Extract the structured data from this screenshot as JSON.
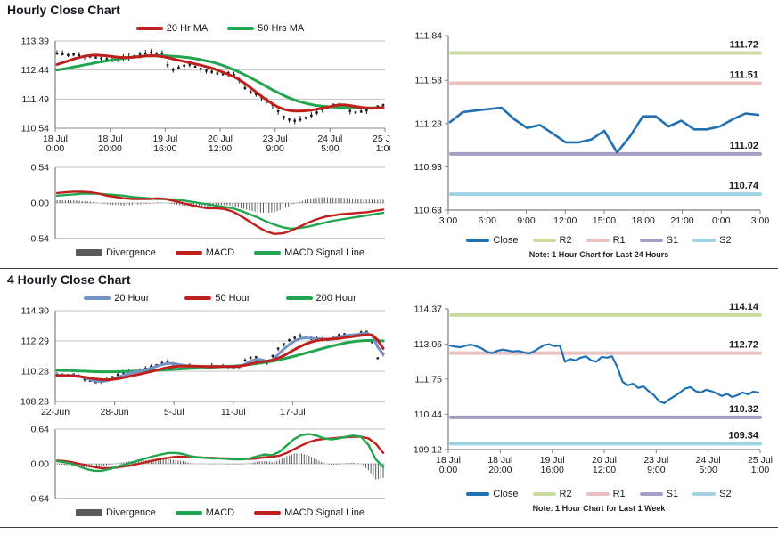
{
  "section1": {
    "title": "Hourly Close Chart"
  },
  "section2": {
    "title": "4 Hourly Close Chart"
  },
  "colors": {
    "red": "#c0201c",
    "green": "#21a64f",
    "blue_close": "#2070b4",
    "steel_blue": "#7093c8",
    "divergence_gray": "#595959",
    "r2": "#c9db9f",
    "r1": "#e9c0be",
    "s1": "#a89cc8",
    "s2": "#9fd3e2",
    "grid": "#c3c3c3",
    "axis": "#808080",
    "candle": "#1a1a1a"
  },
  "chart_data": "see charts",
  "charts": {
    "hourly_price": {
      "type": "line",
      "title": "Hourly Close Chart",
      "legend": [
        {
          "label": "20 Hr MA",
          "color": "red"
        },
        {
          "label": "50 Hrs MA",
          "color": "green"
        }
      ],
      "ylim": [
        110.54,
        113.39
      ],
      "yticks": [
        113.39,
        112.44,
        111.49,
        110.54
      ],
      "xticks": [
        [
          "18 Jul",
          "0:00"
        ],
        [
          "18 Jul",
          "20:00"
        ],
        [
          "19 Jul",
          "16:00"
        ],
        [
          "20 Jul",
          "12:00"
        ],
        [
          "23 Jul",
          "9:00"
        ],
        [
          "24 Jul",
          "5:00"
        ],
        [
          "25 Jul",
          "1:00"
        ]
      ],
      "close": [
        112.98,
        112.96,
        112.93,
        112.95,
        112.92,
        112.9,
        112.88,
        112.85,
        112.82,
        112.8,
        112.78,
        112.8,
        112.83,
        112.86,
        112.9,
        112.94,
        112.98,
        113.01,
        112.99,
        112.96,
        112.6,
        112.45,
        112.52,
        112.58,
        112.62,
        112.55,
        112.48,
        112.42,
        112.38,
        112.33,
        112.3,
        112.34,
        112.28,
        112.1,
        111.85,
        111.72,
        111.65,
        111.55,
        111.45,
        111.3,
        111.1,
        110.92,
        110.82,
        110.78,
        110.82,
        110.88,
        110.95,
        111.05,
        111.15,
        111.22,
        111.3,
        111.28,
        111.2,
        111.1,
        111.05,
        111.08,
        111.12,
        111.18,
        111.25,
        111.3
      ],
      "ma20": [
        112.62,
        112.68,
        112.74,
        112.8,
        112.85,
        112.89,
        112.92,
        112.93,
        112.92,
        112.9,
        112.88,
        112.86,
        112.85,
        112.85,
        112.86,
        112.88,
        112.9,
        112.91,
        112.9,
        112.88,
        112.85,
        112.8,
        112.76,
        112.72,
        112.68,
        112.64,
        112.6,
        112.55,
        112.5,
        112.44,
        112.37,
        112.3,
        112.22,
        112.12,
        112.0,
        111.86,
        111.72,
        111.58,
        111.45,
        111.33,
        111.23,
        111.16,
        111.12,
        111.1,
        111.1,
        111.11,
        111.13,
        111.16,
        111.19,
        111.23,
        111.27,
        111.3,
        111.3,
        111.28,
        111.25,
        111.22,
        111.2,
        111.19,
        111.2,
        111.22
      ],
      "ma50": [
        112.44,
        112.47,
        112.5,
        112.54,
        112.57,
        112.61,
        112.64,
        112.68,
        112.71,
        112.74,
        112.77,
        112.8,
        112.82,
        112.85,
        112.87,
        112.88,
        112.9,
        112.9,
        112.91,
        112.91,
        112.9,
        112.89,
        112.88,
        112.86,
        112.84,
        112.81,
        112.78,
        112.74,
        112.7,
        112.65,
        112.59,
        112.52,
        112.45,
        112.37,
        112.28,
        112.19,
        112.09,
        111.99,
        111.89,
        111.79,
        111.7,
        111.61,
        111.53,
        111.46,
        111.4,
        111.35,
        111.31,
        111.28,
        111.26,
        111.24,
        111.23,
        111.22,
        111.21,
        111.21,
        111.2,
        111.2,
        111.2,
        111.2,
        111.21,
        111.22
      ]
    },
    "hourly_macd": {
      "type": "line+bar",
      "legend": [
        {
          "label": "Divergence",
          "color": "divergence_gray"
        },
        {
          "label": "MACD",
          "color": "red"
        },
        {
          "label": "MACD Signal Line",
          "color": "green"
        }
      ],
      "ylim": [
        -0.54,
        0.54
      ],
      "yticks": [
        0.54,
        0.0,
        -0.54
      ],
      "macd": [
        0.15,
        0.16,
        0.17,
        0.17,
        0.16,
        0.14,
        0.11,
        0.09,
        0.07,
        0.06,
        0.06,
        0.06,
        0.07,
        0.06,
        0.03,
        0.0,
        -0.03,
        -0.06,
        -0.08,
        -0.08,
        -0.09,
        -0.13,
        -0.2,
        -0.28,
        -0.36,
        -0.43,
        -0.47,
        -0.46,
        -0.42,
        -0.36,
        -0.3,
        -0.25,
        -0.21,
        -0.19,
        -0.17,
        -0.16,
        -0.15,
        -0.14,
        -0.12,
        -0.1
      ],
      "signal": [
        0.11,
        0.12,
        0.13,
        0.14,
        0.14,
        0.14,
        0.13,
        0.12,
        0.11,
        0.09,
        0.08,
        0.07,
        0.06,
        0.06,
        0.05,
        0.04,
        0.02,
        0.0,
        -0.02,
        -0.04,
        -0.06,
        -0.08,
        -0.12,
        -0.17,
        -0.22,
        -0.28,
        -0.33,
        -0.37,
        -0.39,
        -0.38,
        -0.36,
        -0.33,
        -0.3,
        -0.27,
        -0.25,
        -0.23,
        -0.21,
        -0.19,
        -0.17,
        -0.15
      ],
      "divergence": [
        0.04,
        0.04,
        0.04,
        0.03,
        0.02,
        0.0,
        -0.02,
        -0.03,
        -0.04,
        -0.03,
        -0.02,
        -0.01,
        0.01,
        0.0,
        -0.02,
        -0.04,
        -0.05,
        -0.06,
        -0.06,
        -0.04,
        -0.03,
        -0.05,
        -0.08,
        -0.11,
        -0.14,
        -0.15,
        -0.14,
        -0.09,
        -0.03,
        0.02,
        0.06,
        0.08,
        0.09,
        0.08,
        0.08,
        0.07,
        0.06,
        0.05,
        0.05,
        0.05
      ]
    },
    "daily_pivot": {
      "type": "line",
      "legend": [
        {
          "label": "Close",
          "color": "blue_close"
        },
        {
          "label": "R2",
          "color": "r2"
        },
        {
          "label": "R1",
          "color": "r1"
        },
        {
          "label": "S1",
          "color": "s1"
        },
        {
          "label": "S2",
          "color": "s2"
        }
      ],
      "note": "Note: 1 Hour Chart for Last 24 Hours",
      "ylim": [
        110.63,
        111.84
      ],
      "yticks": [
        111.84,
        111.53,
        111.23,
        110.93,
        110.63
      ],
      "xticks": [
        "3:00",
        "6:00",
        "9:00",
        "12:00",
        "15:00",
        "18:00",
        "21:00",
        "0:00",
        "3:00"
      ],
      "levels": [
        {
          "name": "R2",
          "value": 111.72,
          "color": "r2"
        },
        {
          "name": "R1",
          "value": 111.51,
          "color": "r1"
        },
        {
          "name": "S1",
          "value": 111.02,
          "color": "s1"
        },
        {
          "name": "S2",
          "value": 110.74,
          "color": "s2"
        }
      ],
      "close": [
        111.24,
        111.31,
        111.32,
        111.33,
        111.34,
        111.26,
        111.2,
        111.22,
        111.16,
        111.1,
        111.1,
        111.12,
        111.18,
        111.03,
        111.14,
        111.28,
        111.28,
        111.21,
        111.25,
        111.19,
        111.19,
        111.21,
        111.26,
        111.3,
        111.29
      ]
    },
    "fourhour_price": {
      "type": "line",
      "title": "4 Hourly Close Chart",
      "legend": [
        {
          "label": "20 Hour",
          "color": "steel_blue"
        },
        {
          "label": "50 Hour",
          "color": "red"
        },
        {
          "label": "200 Hour",
          "color": "green"
        }
      ],
      "ylim": [
        108.28,
        114.3
      ],
      "yticks": [
        114.3,
        112.29,
        110.28,
        108.28
      ],
      "xticks": [
        "22-Jun",
        "28-Jun",
        "5-Jul",
        "11-Jul",
        "17-Jul"
      ],
      "close": [
        110.05,
        109.98,
        110.02,
        110.08,
        109.92,
        109.75,
        109.65,
        109.55,
        109.6,
        109.72,
        109.9,
        110.05,
        110.18,
        110.28,
        110.22,
        110.32,
        110.45,
        110.58,
        110.7,
        110.82,
        110.9,
        110.8,
        110.68,
        110.62,
        110.66,
        110.6,
        110.56,
        110.6,
        110.64,
        110.6,
        110.62,
        110.58,
        110.55,
        110.6,
        111.0,
        111.18,
        111.22,
        110.95,
        110.85,
        111.3,
        111.8,
        112.1,
        112.35,
        112.5,
        112.62,
        112.5,
        112.42,
        112.46,
        112.4,
        112.36,
        112.5,
        112.68,
        112.74,
        112.66,
        112.72,
        112.86,
        112.9,
        112.2,
        111.15,
        111.45
      ],
      "ma20": [
        110.02,
        110.0,
        110.0,
        110.0,
        109.95,
        109.85,
        109.73,
        109.63,
        109.6,
        109.65,
        109.75,
        109.88,
        110.02,
        110.14,
        110.22,
        110.28,
        110.38,
        110.5,
        110.62,
        110.73,
        110.8,
        110.8,
        110.74,
        110.67,
        110.64,
        110.62,
        110.59,
        110.59,
        110.6,
        110.61,
        110.6,
        110.59,
        110.58,
        110.6,
        110.75,
        110.95,
        111.08,
        111.05,
        110.95,
        111.05,
        111.4,
        111.75,
        112.05,
        112.3,
        112.45,
        112.5,
        112.47,
        112.44,
        112.42,
        112.4,
        112.44,
        112.54,
        112.64,
        112.68,
        112.7,
        112.76,
        112.82,
        112.65,
        111.9,
        111.42
      ],
      "ma50": [
        110.0,
        110.0,
        109.99,
        109.97,
        109.94,
        109.89,
        109.83,
        109.77,
        109.73,
        109.72,
        109.74,
        109.79,
        109.86,
        109.94,
        110.02,
        110.1,
        110.18,
        110.27,
        110.36,
        110.45,
        110.53,
        110.59,
        110.62,
        110.63,
        110.63,
        110.62,
        110.61,
        110.6,
        110.6,
        110.6,
        110.6,
        110.6,
        110.6,
        110.62,
        110.68,
        110.77,
        110.86,
        110.92,
        110.96,
        111.02,
        111.15,
        111.32,
        111.52,
        111.73,
        111.93,
        112.1,
        112.23,
        112.32,
        112.38,
        112.41,
        112.43,
        112.46,
        112.51,
        112.56,
        112.61,
        112.66,
        112.7,
        112.68,
        112.35,
        111.8
      ],
      "ma200": [
        110.35,
        110.34,
        110.33,
        110.32,
        110.3,
        110.29,
        110.27,
        110.26,
        110.25,
        110.25,
        110.25,
        110.26,
        110.27,
        110.28,
        110.29,
        110.3,
        110.31,
        110.33,
        110.35,
        110.37,
        110.39,
        110.41,
        110.43,
        110.45,
        110.47,
        110.49,
        110.51,
        110.53,
        110.55,
        110.57,
        110.59,
        110.61,
        110.63,
        110.66,
        110.7,
        110.74,
        110.79,
        110.84,
        110.9,
        110.96,
        111.03,
        111.11,
        111.2,
        111.29,
        111.39,
        111.49,
        111.59,
        111.69,
        111.79,
        111.89,
        111.98,
        112.07,
        112.15,
        112.22,
        112.27,
        112.3,
        112.32,
        112.32,
        112.31,
        112.3
      ]
    },
    "fourhour_macd": {
      "type": "line+bar",
      "legend": [
        {
          "label": "Divergence",
          "color": "divergence_gray"
        },
        {
          "label": "MACD",
          "color": "green"
        },
        {
          "label": "MACD Signal Line",
          "color": "red"
        }
      ],
      "ylim": [
        -0.64,
        0.64
      ],
      "yticks": [
        0.64,
        0.0,
        -0.64
      ],
      "macd": [
        0.05,
        0.03,
        0.0,
        -0.05,
        -0.1,
        -0.13,
        -0.13,
        -0.1,
        -0.06,
        -0.02,
        0.02,
        0.06,
        0.1,
        0.14,
        0.17,
        0.2,
        0.2,
        0.18,
        0.14,
        0.12,
        0.11,
        0.1,
        0.1,
        0.09,
        0.08,
        0.08,
        0.1,
        0.14,
        0.17,
        0.16,
        0.22,
        0.34,
        0.46,
        0.53,
        0.55,
        0.52,
        0.47,
        0.45,
        0.47,
        0.5,
        0.52,
        0.5,
        0.35,
        0.08,
        -0.06
      ],
      "signal": [
        0.06,
        0.05,
        0.03,
        0.0,
        -0.03,
        -0.06,
        -0.08,
        -0.08,
        -0.07,
        -0.05,
        -0.03,
        0.0,
        0.03,
        0.06,
        0.09,
        0.11,
        0.13,
        0.13,
        0.13,
        0.12,
        0.11,
        0.11,
        0.1,
        0.1,
        0.09,
        0.09,
        0.09,
        0.1,
        0.12,
        0.13,
        0.15,
        0.2,
        0.27,
        0.34,
        0.4,
        0.44,
        0.46,
        0.47,
        0.48,
        0.49,
        0.5,
        0.5,
        0.47,
        0.37,
        0.2
      ],
      "divergence": [
        -0.01,
        -0.02,
        -0.03,
        -0.05,
        -0.07,
        -0.07,
        -0.05,
        -0.02,
        0.01,
        0.03,
        0.05,
        0.06,
        0.07,
        0.08,
        0.08,
        0.09,
        0.07,
        0.05,
        0.01,
        0.0,
        0.0,
        -0.01,
        0.0,
        -0.01,
        -0.01,
        -0.01,
        0.01,
        0.04,
        0.05,
        0.03,
        0.07,
        0.14,
        0.19,
        0.19,
        0.15,
        0.08,
        0.01,
        -0.02,
        -0.01,
        0.01,
        0.02,
        0.0,
        -0.12,
        -0.29,
        -0.26
      ]
    },
    "weekly_pivot": {
      "type": "line",
      "legend": [
        {
          "label": "Close",
          "color": "blue_close"
        },
        {
          "label": "R2",
          "color": "r2"
        },
        {
          "label": "R1",
          "color": "r1"
        },
        {
          "label": "S1",
          "color": "s1"
        },
        {
          "label": "S2",
          "color": "s2"
        }
      ],
      "note": "Note: 1 Hour Chart for Last 1 Week",
      "ylim": [
        109.12,
        114.37
      ],
      "yticks": [
        114.37,
        113.06,
        111.75,
        110.44,
        109.12
      ],
      "xticks": [
        [
          "18 Jul",
          "0:00"
        ],
        [
          "18 Jul",
          "20:00"
        ],
        [
          "19 Jul",
          "16:00"
        ],
        [
          "20 Jul",
          "12:00"
        ],
        [
          "23 Jul",
          "9:00"
        ],
        [
          "24 Jul",
          "5:00"
        ],
        [
          "25 Jul",
          "1:00"
        ]
      ],
      "levels": [
        {
          "name": "R2",
          "value": 114.14,
          "color": "r2"
        },
        {
          "name": "R1",
          "value": 112.72,
          "color": "r1"
        },
        {
          "name": "S1",
          "value": 110.32,
          "color": "s1"
        },
        {
          "name": "S2",
          "value": 109.34,
          "color": "s2"
        }
      ],
      "close": [
        113.0,
        112.96,
        112.94,
        113.0,
        113.04,
        112.98,
        112.9,
        112.78,
        112.72,
        112.8,
        112.85,
        112.82,
        112.78,
        112.8,
        112.76,
        112.7,
        112.78,
        112.9,
        113.02,
        113.05,
        112.98,
        113.0,
        112.4,
        112.5,
        112.45,
        112.55,
        112.6,
        112.45,
        112.4,
        112.58,
        112.55,
        112.6,
        112.2,
        111.65,
        111.52,
        111.58,
        111.42,
        111.48,
        111.3,
        111.15,
        110.92,
        110.85,
        111.0,
        111.12,
        111.25,
        111.4,
        111.45,
        111.3,
        111.25,
        111.35,
        111.3,
        111.22,
        111.12,
        111.2,
        111.08,
        111.15,
        111.25,
        111.18,
        111.28,
        111.25
      ]
    }
  }
}
